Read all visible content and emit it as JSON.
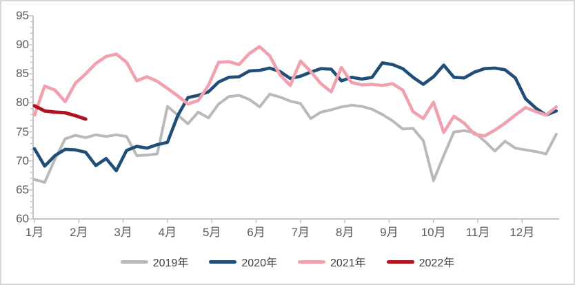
{
  "chart_data": {
    "type": "line",
    "x_unit": "week (1-52, Jan-Dec)",
    "x_labels": [
      "1月",
      "2月",
      "3月",
      "4月",
      "5月",
      "6月",
      "7月",
      "8月",
      "9月",
      "10月",
      "11月",
      "12月"
    ],
    "y_ticks": [
      95,
      90,
      85,
      80,
      75,
      70,
      65,
      60
    ],
    "ylim": [
      60,
      95
    ],
    "grid": false,
    "legend_position": "bottom",
    "colors": {
      "background": "#ffffff",
      "frame_border": "#d7d7d7",
      "axis": "#c3c3c3",
      "tick_label": "#595959",
      "legend_text": "#404040"
    },
    "series": [
      {
        "id": "2019",
        "name": "2019年",
        "color": "#b9b9b9",
        "stroke_width": 4,
        "values": [
          66.8,
          66.3,
          70.3,
          73.8,
          74.4,
          74.0,
          74.5,
          74.2,
          74.5,
          74.2,
          70.9,
          71.0,
          71.2,
          79.4,
          77.9,
          76.4,
          78.4,
          77.4,
          79.8,
          81.1,
          81.3,
          80.6,
          79.3,
          81.5,
          81.0,
          80.3,
          79.9,
          77.3,
          78.4,
          78.8,
          79.3,
          79.6,
          79.4,
          78.9,
          78.0,
          76.9,
          75.5,
          75.6,
          73.5,
          66.6,
          70.9,
          75.0,
          75.2,
          74.9,
          73.4,
          71.7,
          73.4,
          72.2,
          71.9,
          71.6,
          71.2,
          74.6
        ]
      },
      {
        "id": "2020",
        "name": "2020年",
        "color": "#1f4e79",
        "stroke_width": 4.6,
        "values": [
          72.1,
          69.1,
          70.9,
          72.0,
          71.9,
          71.5,
          69.2,
          70.4,
          68.3,
          71.8,
          72.5,
          72.2,
          72.8,
          73.2,
          77.8,
          80.9,
          81.3,
          81.9,
          83.6,
          84.4,
          84.5,
          85.5,
          85.6,
          86.0,
          85.4,
          84.2,
          84.6,
          85.3,
          85.9,
          85.8,
          83.8,
          84.4,
          84.1,
          84.4,
          86.9,
          86.6,
          85.9,
          84.4,
          83.2,
          84.5,
          86.5,
          84.4,
          84.3,
          85.3,
          85.9,
          86.0,
          85.7,
          84.3,
          80.7,
          79.1,
          77.9,
          78.6
        ]
      },
      {
        "id": "2021",
        "name": "2021年",
        "color": "#f0a1ad",
        "stroke_width": 4.6,
        "values": [
          77.9,
          82.9,
          82.2,
          80.2,
          83.4,
          85.0,
          86.8,
          88.0,
          88.4,
          87.0,
          83.8,
          84.5,
          83.7,
          82.5,
          81.2,
          79.8,
          80.4,
          83.0,
          87.0,
          87.1,
          86.6,
          88.5,
          89.7,
          88.1,
          84.8,
          83.0,
          87.2,
          85.4,
          83.3,
          81.9,
          86.1,
          83.5,
          83.1,
          83.2,
          83.0,
          83.3,
          82.2,
          78.5,
          77.3,
          80.1,
          74.9,
          77.7,
          76.5,
          74.6,
          74.3,
          75.3,
          76.5,
          77.9,
          79.2,
          78.5,
          77.9,
          79.3
        ]
      },
      {
        "id": "2022",
        "name": "2022年",
        "color": "#b0131f",
        "stroke_width": 5,
        "values": [
          79.5,
          78.6,
          78.4,
          78.3,
          77.8,
          77.2
        ]
      }
    ]
  }
}
